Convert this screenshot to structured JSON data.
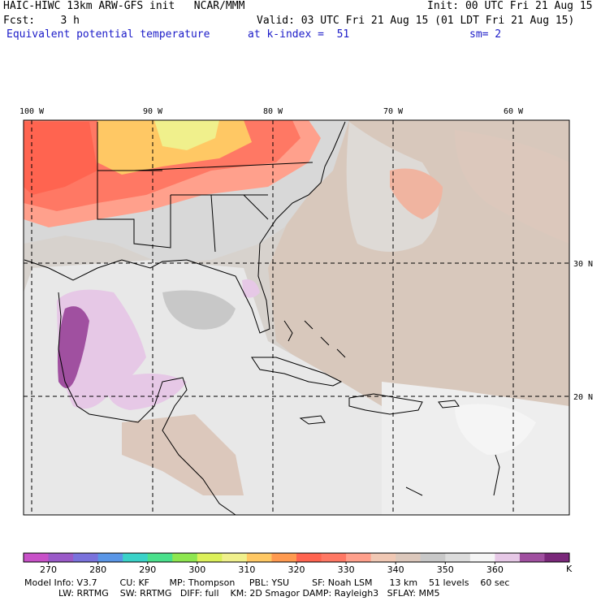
{
  "header": {
    "model_line": "HAIC-HIWC 13km ARW-GFS init   NCAR/MMM",
    "init_line": "Init: 00 UTC Fri 21 Aug 15",
    "fcst_line": "Fcst:    3 h",
    "valid_line": "Valid: 03 UTC Fri 21 Aug 15 (01 LDT Fri 21 Aug 15)",
    "field_name": "Equivalent potential temperature",
    "level_text": "at k-index =  51",
    "smoothing": "sm= 2"
  },
  "map": {
    "lon_labels": [
      "100 W",
      "90 W",
      "80 W",
      "70 W",
      "60 W"
    ],
    "lat_labels": [
      "30 N",
      "20 N"
    ],
    "grid_style": "dashed"
  },
  "colorbar": {
    "ticks": [
      "270",
      "280",
      "290",
      "300",
      "310",
      "320",
      "330",
      "340",
      "350",
      "360"
    ],
    "unit": "K",
    "colors": [
      "#c851c8",
      "#9a5ac8",
      "#7a72dc",
      "#5a96e6",
      "#3ad2c8",
      "#4ae08c",
      "#8ee650",
      "#dcf05a",
      "#f0f08c",
      "#ffc864",
      "#ff9a50",
      "#ff6450",
      "#ff7864",
      "#ffa08c",
      "#f0c8b4",
      "#dcc8bc",
      "#c8c8c8",
      "#dcdcdc",
      "#f5f5f5",
      "#e6c8e6",
      "#a050a0",
      "#7a287a"
    ]
  },
  "footer": {
    "line1": "Model Info: V3.7        CU: KF       MP: Thompson     PBL: YSU        SF: Noah LSM      13 km    51 levels    60 sec",
    "line2": "            LW: RRTMG    SW: RRTMG   DIFF: full    KM: 2D Smagor DAMP: Rayleigh3   SFLAY: MM5"
  }
}
